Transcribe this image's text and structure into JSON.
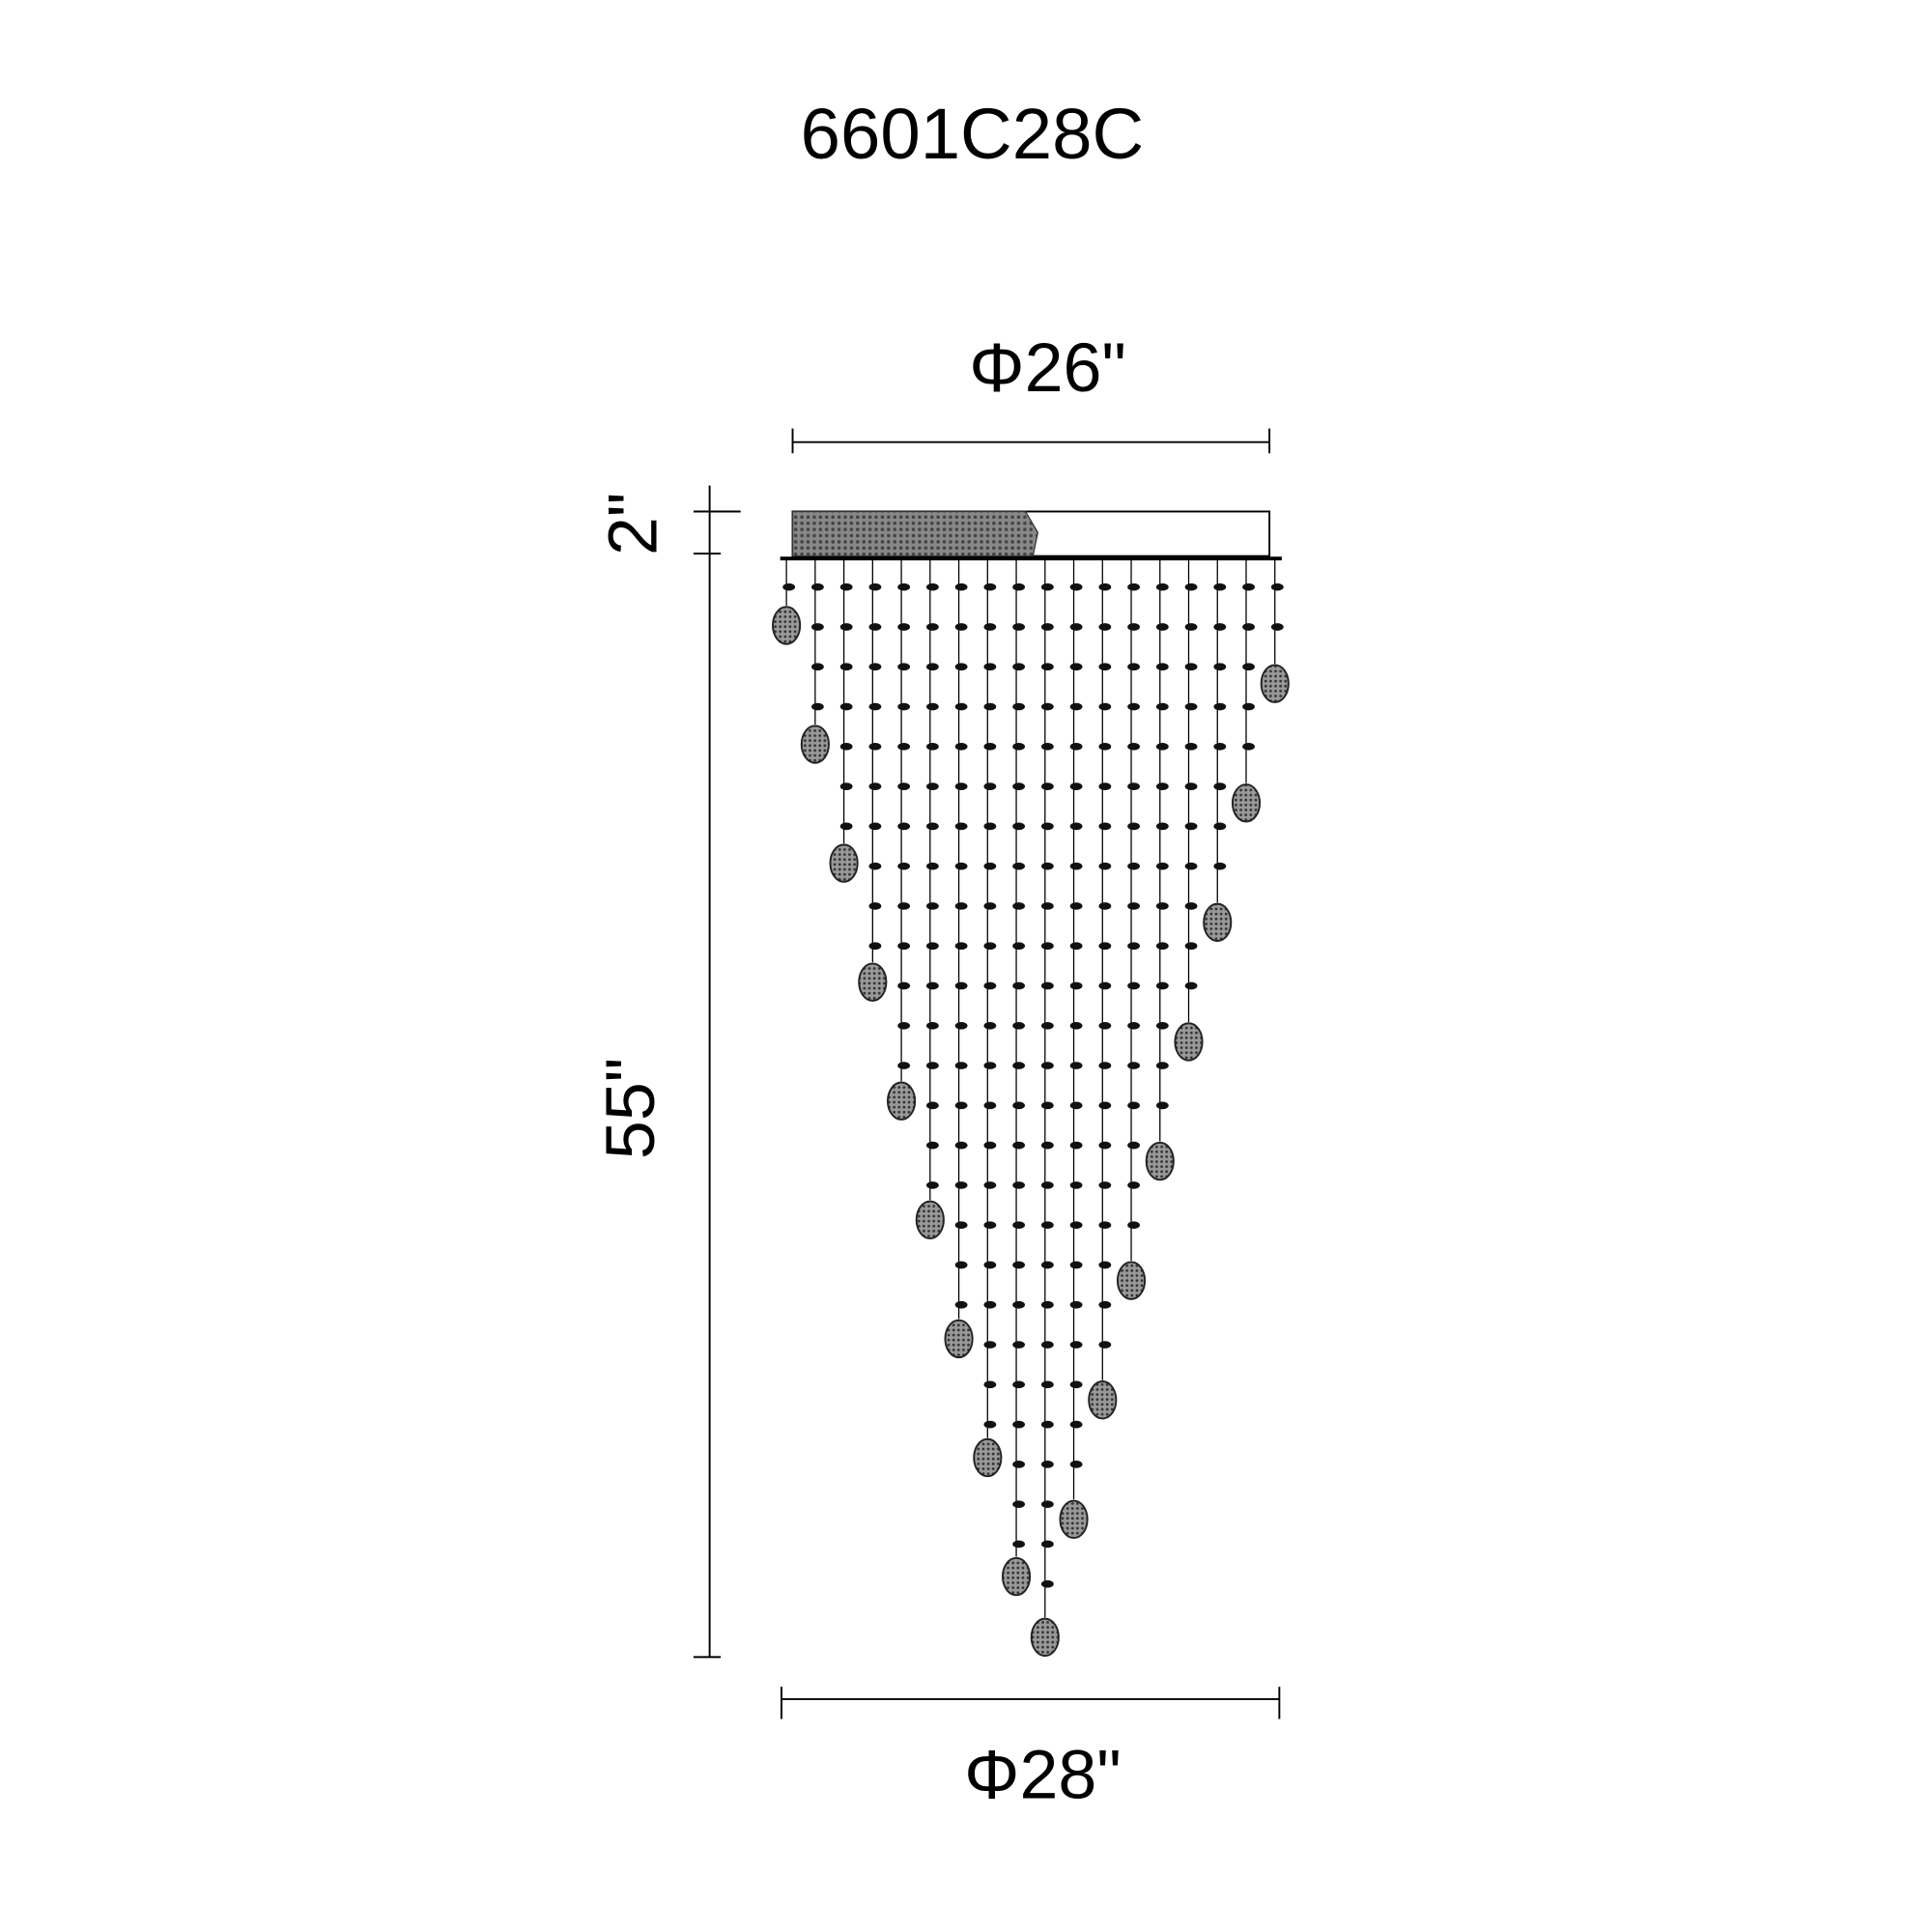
{
  "title": "6601C28C",
  "dimensions": {
    "top_diameter": "Φ26\"",
    "canopy_height": "2\"",
    "body_height": "55\"",
    "bottom_diameter": "Φ28\""
  },
  "colors": {
    "line": "#000000",
    "canopy_fill": "#777777"
  }
}
